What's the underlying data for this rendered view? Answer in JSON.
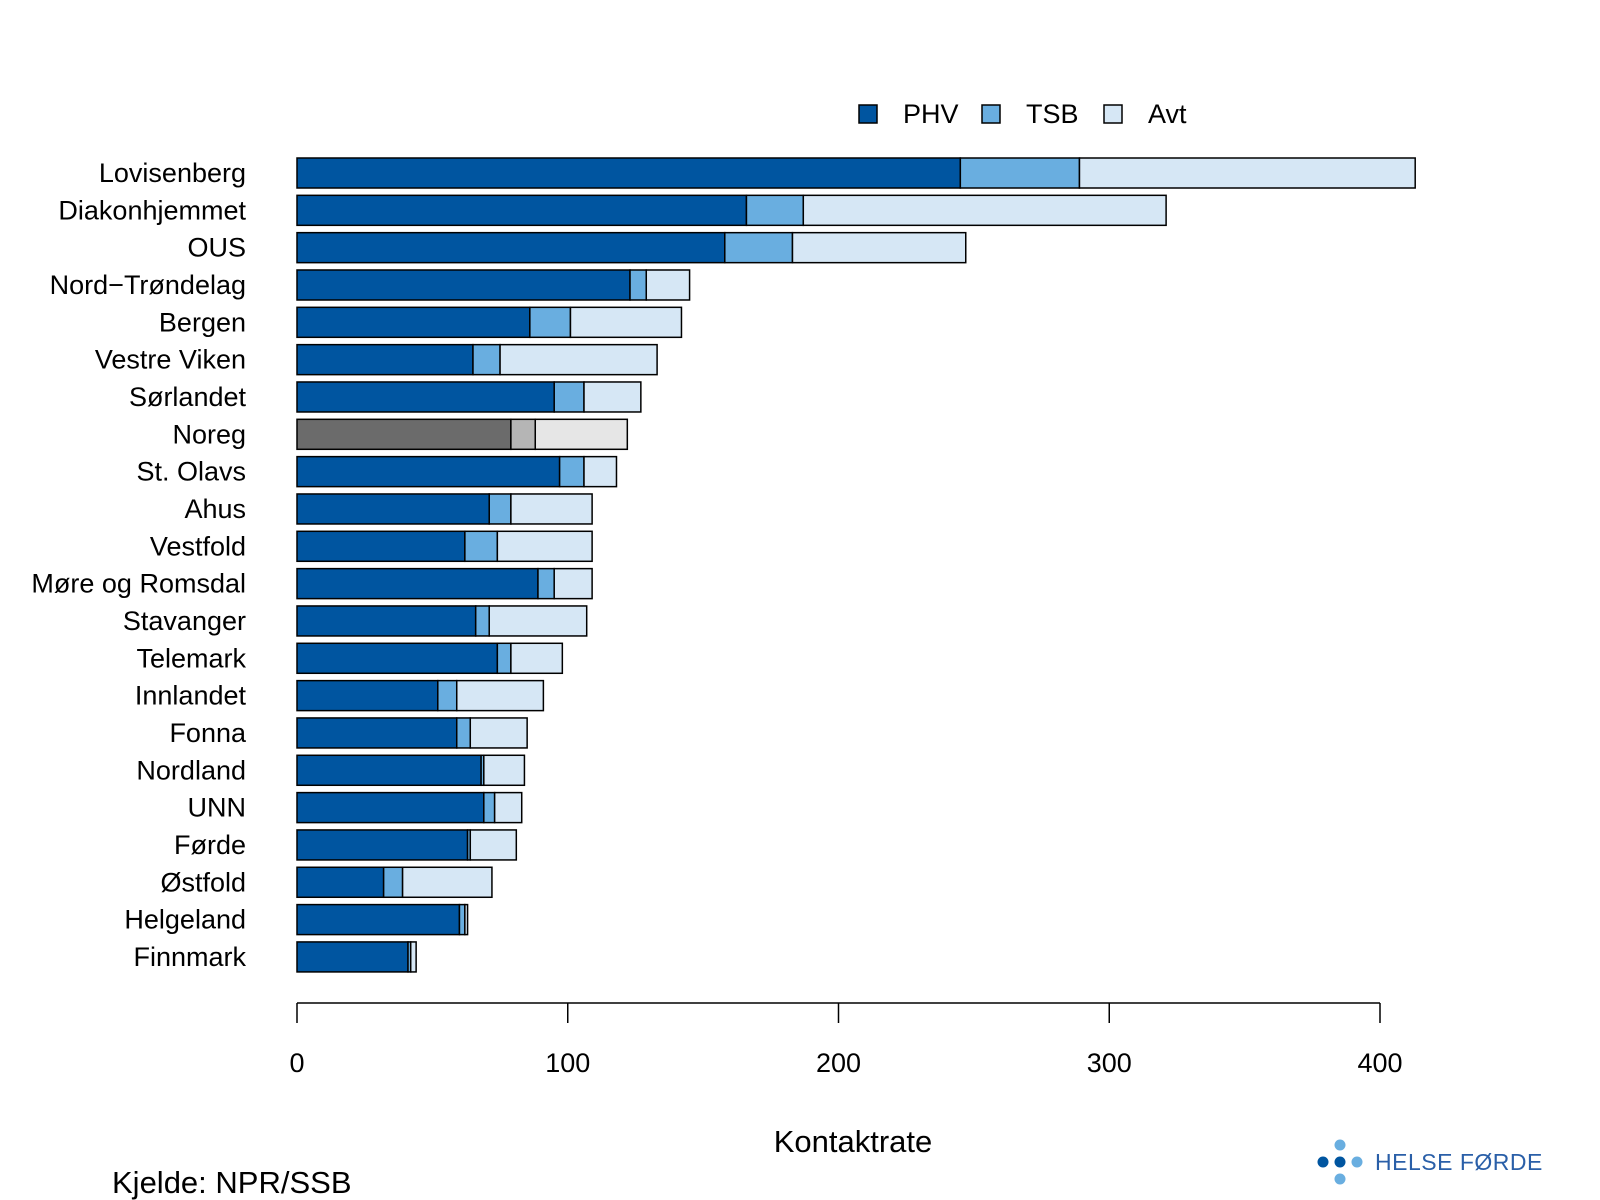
{
  "chart_data": {
    "type": "bar",
    "orientation": "horizontal",
    "stacked": true,
    "categories": [
      "Lovisenberg",
      "Diakonhjemmet",
      "OUS",
      "Nord−Trøndelag",
      "Bergen",
      "Vestre Viken",
      "Sørlandet",
      "Noreg",
      "St. Olavs",
      "Ahus",
      "Vestfold",
      "Møre og Romsdal",
      "Stavanger",
      "Telemark",
      "Innlandet",
      "Fonna",
      "Nordland",
      "UNN",
      "Førde",
      "Østfold",
      "Helgeland",
      "Finnmark"
    ],
    "series": [
      {
        "name": "PHV",
        "color": "#0055a0",
        "values": [
          245,
          166,
          158,
          123,
          86,
          65,
          95,
          79,
          97,
          71,
          62,
          89,
          66,
          74,
          52,
          59,
          68,
          69,
          63,
          32,
          60,
          41
        ]
      },
      {
        "name": "TSB",
        "color": "#69aee0",
        "values": [
          44,
          21,
          25,
          6,
          15,
          10,
          11,
          9,
          9,
          8,
          12,
          6,
          5,
          5,
          7,
          5,
          1,
          4,
          1,
          7,
          2,
          1
        ]
      },
      {
        "name": "Avt",
        "color": "#d6e7f5",
        "values": [
          124,
          134,
          64,
          16,
          41,
          58,
          21,
          34,
          12,
          30,
          35,
          14,
          36,
          19,
          32,
          21,
          15,
          10,
          17,
          33,
          1,
          2
        ]
      }
    ],
    "highlight": {
      "category": "Noreg",
      "colors": [
        "#6b6b6b",
        "#b5b5b5",
        "#e6e6e6"
      ]
    },
    "xlim": [
      0,
      400
    ],
    "xticks": [
      "0",
      "100",
      "200",
      "300",
      "400"
    ],
    "xlabel": "Kontaktrate",
    "ylabel": "",
    "legend": {
      "placement": "top",
      "entries": [
        "PHV",
        "TSB",
        "Avt"
      ]
    },
    "grid": false
  },
  "source": "Kjelde: NPR/SSB",
  "logo": {
    "text": "HELSE FØRDE",
    "colors": [
      "#0055a0",
      "#69aee0"
    ]
  }
}
